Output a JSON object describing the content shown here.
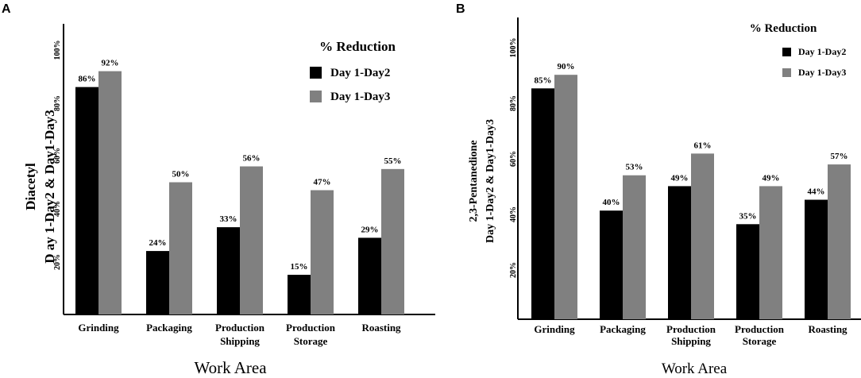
{
  "chart_data": [
    {
      "type": "bar",
      "panel_label": "A",
      "categories": [
        "Grinding",
        "Packaging",
        "Production Shipping",
        "Production Storage",
        "Roasting"
      ],
      "category_lines": [
        [
          "Grinding"
        ],
        [
          "Packaging"
        ],
        [
          "Production",
          "Shipping"
        ],
        [
          "Production",
          "Storage"
        ],
        [
          "Roasting"
        ]
      ],
      "series": [
        {
          "name": "Day 1-Day2",
          "values": [
            86,
            24,
            33,
            15,
            29
          ],
          "labels": [
            "86%",
            "24%",
            "33%",
            "15%",
            "29%"
          ],
          "color": "#000000"
        },
        {
          "name": "Day 1-Day3",
          "values": [
            92,
            50,
            56,
            47,
            55
          ],
          "labels": [
            "92%",
            "50%",
            "56%",
            "47%",
            "55%"
          ],
          "color": "#808080"
        }
      ],
      "yticks": [
        "20%",
        "40%",
        "60%",
        "80%",
        "100%"
      ],
      "ylim": [
        0,
        110
      ],
      "legend_title": "% Reduction",
      "xlabel": "Work Area",
      "ylabel_lines": [
        "Diacetyl",
        "D ay 1-Day2 & Day1-Day3"
      ]
    },
    {
      "type": "bar",
      "panel_label": "B",
      "categories": [
        "Grinding",
        "Packaging",
        "Production Shipping",
        "Production Storage",
        "Roasting"
      ],
      "category_lines": [
        [
          "Grinding"
        ],
        [
          "Packaging"
        ],
        [
          "Production",
          "Shipping"
        ],
        [
          "Production",
          "Storage"
        ],
        [
          "Roasting"
        ]
      ],
      "series": [
        {
          "name": "Day 1-Day2",
          "values": [
            85,
            40,
            49,
            35,
            44
          ],
          "labels": [
            "85%",
            "40%",
            "49%",
            "35%",
            "44%"
          ],
          "color": "#000000"
        },
        {
          "name": "Day 1-Day3",
          "values": [
            90,
            53,
            61,
            49,
            57
          ],
          "labels": [
            "90%",
            "53%",
            "61%",
            "49%",
            "57%"
          ],
          "color": "#808080"
        }
      ],
      "yticks": [
        "20%",
        "40%",
        "60%",
        "80%",
        "100%"
      ],
      "ylim": [
        0,
        110
      ],
      "legend_title": "% Reduction",
      "xlabel": "Work Area",
      "ylabel_lines": [
        "2,3-Pentanedione",
        "Day 1-Day2 & Day1-Day3"
      ]
    }
  ]
}
